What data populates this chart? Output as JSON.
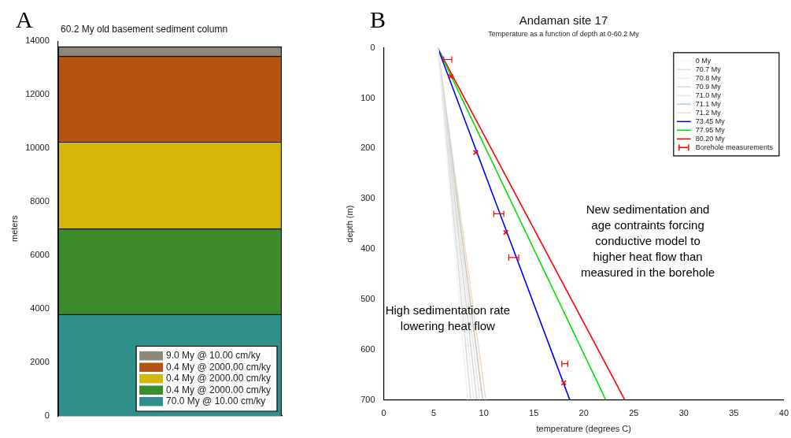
{
  "chart_data": [
    {
      "type": "bar",
      "title": "60.2 My old basement sediment column",
      "ylabel": "meters",
      "categories": [
        null
      ],
      "stacked": true,
      "tick_labels": "y",
      "legend": "bottom right",
      "ylim": [
        0,
        14000
      ],
      "yticks": [
        0,
        2000,
        4000,
        6000,
        8000,
        10000,
        12000,
        14000
      ],
      "annotations": [
        "A"
      ],
      "series": [
        {
          "name": "70.0 My @ 10.00 cm/ky",
          "color": "#2f8f8a",
          "values": [
            3800
          ]
        },
        {
          "name": "0.4 My @ 2000.00 cm/ky",
          "color": "#3c8c2c",
          "values": [
            3200
          ]
        },
        {
          "name": "0.4 My @ 2000.00 cm/ky",
          "color": "#d4b90c",
          "values": [
            3250
          ]
        },
        {
          "name": "0.4 My @ 2000.00 cm/ky",
          "color": "#b5540f",
          "values": [
            3200
          ]
        },
        {
          "name": "9.0 My @ 10.00 cm/ky",
          "color": "#8f877a",
          "values": [
            350
          ]
        }
      ]
    },
    {
      "type": "line",
      "title": "Andaman site 17",
      "subtitle": "Temperature as a function of depth at 0-60.2 My",
      "xlabel": "temperature (degrees C)",
      "ylabel": "depth (m)",
      "legend": "top right",
      "xlim": [
        0,
        40
      ],
      "xticks": [
        0,
        5,
        10,
        15,
        20,
        25,
        30,
        35,
        40
      ],
      "ylim": [
        700,
        0
      ],
      "yticks": [
        0,
        100,
        200,
        300,
        400,
        500,
        600,
        700
      ],
      "annotations": [
        "B",
        "New sedimentation and\nage contraints forcing\nconductive model to\nhigher heat flow than\nmeasured in the borehole",
        "High sedimentation rate\nlowering heat flow"
      ],
      "series": [
        {
          "name": "0 My",
          "color": "#f2f2f2",
          "x": [
            5.4,
            8.4
          ],
          "values": [
            0,
            700
          ]
        },
        {
          "name": "70.7 My",
          "color": "#dcdcdc",
          "x": [
            5.4,
            8.7
          ],
          "values": [
            0,
            700
          ]
        },
        {
          "name": "70.8 My",
          "color": "#ececec",
          "x": [
            5.4,
            9.0
          ],
          "values": [
            0,
            700
          ]
        },
        {
          "name": "70.9 My",
          "color": "#d8d8d8",
          "x": [
            5.4,
            9.3
          ],
          "values": [
            0,
            700
          ]
        },
        {
          "name": "71.0 My",
          "color": "#e4e4e4",
          "x": [
            5.4,
            9.6
          ],
          "values": [
            0,
            700
          ]
        },
        {
          "name": "71.1 My",
          "color": "#c8c8c8",
          "x": [
            5.4,
            9.9
          ],
          "values": [
            0,
            700
          ]
        },
        {
          "name": "71.2 My",
          "color": "#f3dcc4",
          "x": [
            5.4,
            10.2
          ],
          "values": [
            0,
            700
          ]
        },
        {
          "name": "73.45 My",
          "color": "#0000ff",
          "x": [
            5.4,
            18.6
          ],
          "values": [
            0,
            700
          ]
        },
        {
          "name": "77.95 My",
          "color": "#00e000",
          "x": [
            5.4,
            22.2
          ],
          "values": [
            0,
            700
          ]
        },
        {
          "name": "80.20 My",
          "color": "#ff0000",
          "x": [
            5.4,
            24.1
          ],
          "values": [
            0,
            700
          ]
        },
        {
          "name": "Borehole measurements",
          "type": "scatter",
          "marker": "cross",
          "color": "#ff0000",
          "x": [
            6.4,
            6.7,
            9.2,
            11.5,
            12.2,
            13.0,
            18.1,
            18.0
          ],
          "values": [
            23,
            57,
            208,
            330,
            367,
            417,
            628,
            666
          ],
          "xerrors": [
            0.4,
            null,
            null,
            0.5,
            null,
            0.5,
            0.3,
            null
          ]
        }
      ]
    }
  ]
}
